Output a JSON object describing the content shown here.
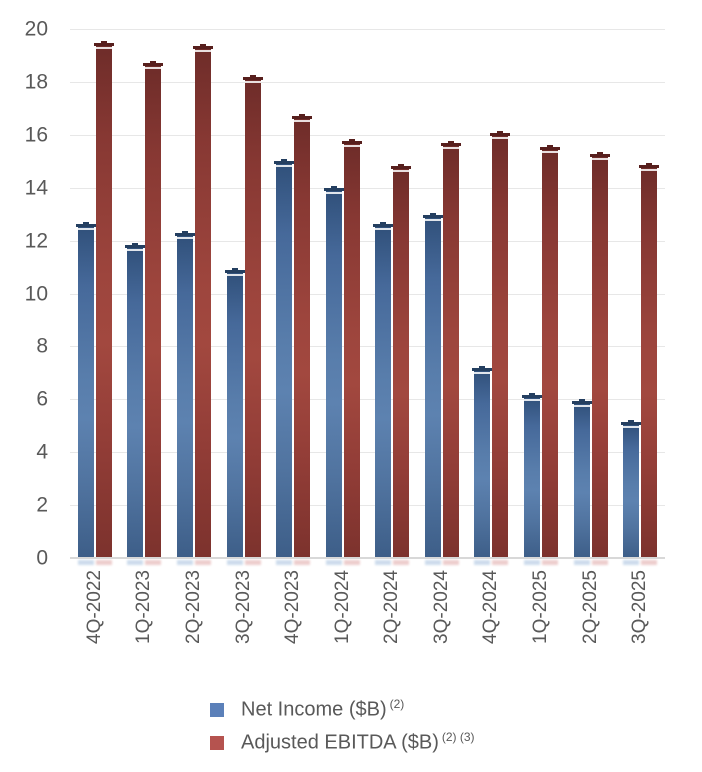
{
  "chart_data": {
    "type": "bar",
    "title": "",
    "xlabel": "",
    "ylabel": "",
    "ylim": [
      0,
      20
    ],
    "ytick_step": 2,
    "grid": true,
    "legend_position": "bottom",
    "categories": [
      "4Q-2022",
      "1Q-2023",
      "2Q-2023",
      "3Q-2023",
      "4Q-2023",
      "1Q-2024",
      "2Q-2024",
      "3Q-2024",
      "4Q-2024",
      "1Q-2025",
      "2Q-2025",
      "3Q-2025"
    ],
    "series": [
      {
        "name": "Net Income ($B)",
        "sup": "(2)",
        "color": "#5b80b9",
        "values": [
          12.55,
          11.75,
          12.2,
          10.8,
          14.95,
          13.9,
          12.55,
          12.9,
          7.1,
          6.1,
          5.85,
          5.05
        ]
      },
      {
        "name": "Adjusted EBITDA ($B)",
        "sup": "(2) (3)",
        "color": "#b5534f",
        "values": [
          19.4,
          18.65,
          19.3,
          18.1,
          16.65,
          15.7,
          14.75,
          15.6,
          16.0,
          15.45,
          15.2,
          14.8
        ]
      }
    ],
    "axis_text_color": "#595959",
    "gridline_color": "#e7e7e7"
  }
}
